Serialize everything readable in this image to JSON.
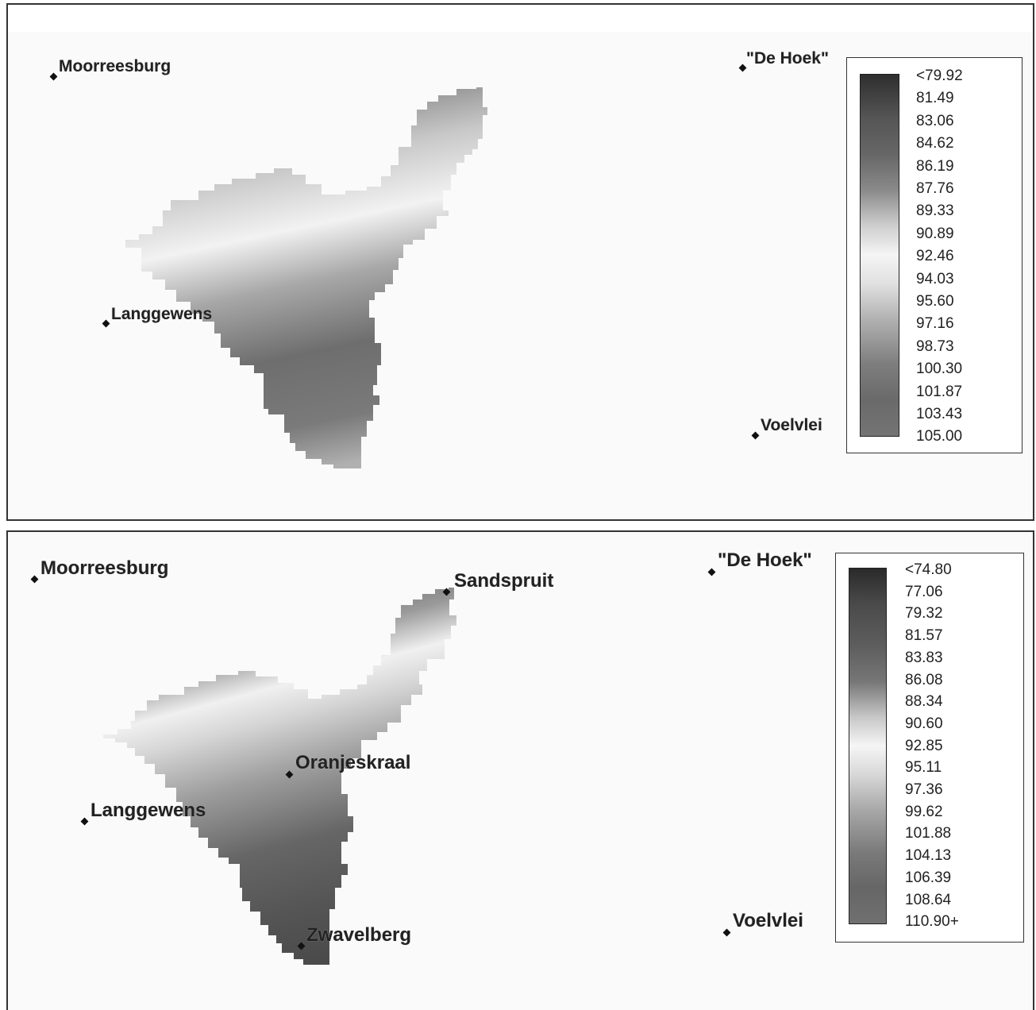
{
  "maps": [
    {
      "id": "top",
      "towns": [
        {
          "name": "Moorreesburg"
        },
        {
          "name": "Langgewens"
        },
        {
          "name": "\"De Hoek\""
        },
        {
          "name": "Voelvlei"
        }
      ],
      "legend": [
        "<79.92",
        "81.49",
        "83.06",
        "84.62",
        "86.19",
        "87.76",
        "89.33",
        "90.89",
        "92.46",
        "94.03",
        "95.60",
        "97.16",
        "98.73",
        "100.30",
        "101.87",
        "103.43",
        "105.00"
      ]
    },
    {
      "id": "bottom",
      "towns": [
        {
          "name": "Moorreesburg"
        },
        {
          "name": "Sandspruit"
        },
        {
          "name": "Oranjeskraal"
        },
        {
          "name": "Langgewens"
        },
        {
          "name": "Zwavelberg"
        },
        {
          "name": "\"De Hoek\""
        },
        {
          "name": "Voelvlei"
        }
      ],
      "legend": [
        "<74.80",
        "77.06",
        "79.32",
        "81.57",
        "83.83",
        "86.08",
        "88.34",
        "90.60",
        "92.85",
        "95.11",
        "97.36",
        "99.62",
        "101.88",
        "104.13",
        "106.39",
        "108.64",
        "110.90+"
      ]
    }
  ],
  "colors": {
    "dark": "#3a3a3a",
    "mid": "#808080",
    "light": "#f4f4f4"
  }
}
